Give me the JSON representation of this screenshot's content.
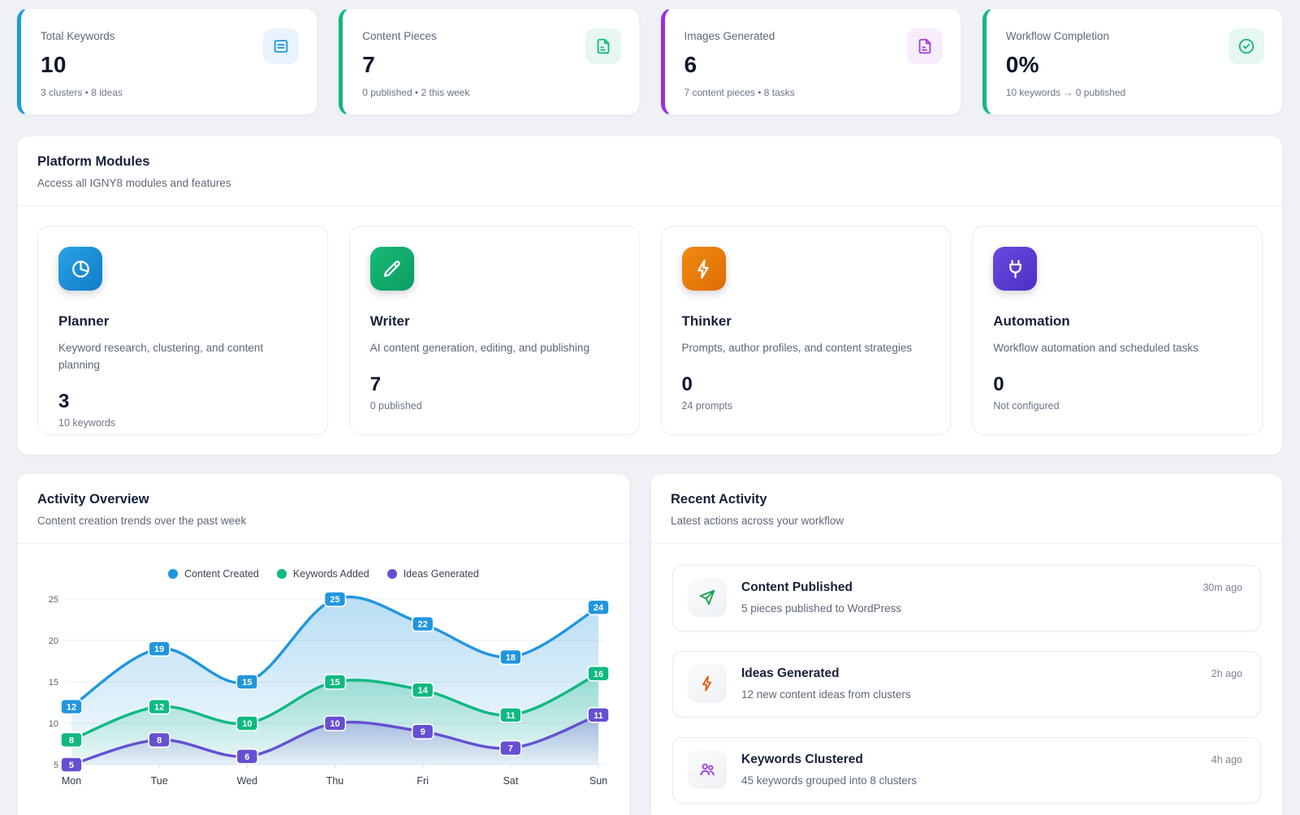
{
  "stats": [
    {
      "label": "Total Keywords",
      "value": "10",
      "sub": "3 clusters • 8 ideas",
      "accent_color": "#1e9be0",
      "icon": "article-icon"
    },
    {
      "label": "Content Pieces",
      "value": "7",
      "sub": "0 published • 2 this week",
      "accent_color": "#10b981",
      "icon": "file-text-icon"
    },
    {
      "label": "Images Generated",
      "value": "6",
      "sub": "7 content pieces • 8 tasks",
      "accent_color": "#9b2fe0",
      "icon": "file-text-icon"
    },
    {
      "label": "Workflow Completion",
      "value": "0%",
      "sub": "10 keywords → 0 published",
      "accent_color": "#10b981",
      "icon": "check-circle-icon"
    }
  ],
  "modules_section": {
    "title": "Platform Modules",
    "subtitle": "Access all IGNY8 modules and features",
    "modules": [
      {
        "name": "Planner",
        "description": "Keyword research, clustering, and content planning",
        "value": "3",
        "sub": "10 keywords",
        "color": "#1793dd",
        "icon": "pie-chart-icon"
      },
      {
        "name": "Writer",
        "description": "AI content generation, editing, and publishing",
        "value": "7",
        "sub": "0 published",
        "color": "#10b981",
        "icon": "pencil-icon"
      },
      {
        "name": "Thinker",
        "description": "Prompts, author profiles, and content strategies",
        "value": "0",
        "sub": "24 prompts",
        "color": "#ea7a0a",
        "icon": "lightning-icon"
      },
      {
        "name": "Automation",
        "description": "Workflow automation and scheduled tasks",
        "value": "0",
        "sub": "Not configured",
        "color": "#5b3fd6",
        "icon": "plug-icon"
      }
    ]
  },
  "activity_overview": {
    "title": "Activity Overview",
    "subtitle": "Content creation trends over the past week"
  },
  "chart_data": {
    "type": "line",
    "categories": [
      "Mon",
      "Tue",
      "Wed",
      "Thu",
      "Fri",
      "Sat",
      "Sun"
    ],
    "series": [
      {
        "name": "Content Created",
        "color": "#2196dd",
        "values": [
          12,
          19,
          15,
          25,
          22,
          18,
          24
        ]
      },
      {
        "name": "Keywords Added",
        "color": "#10b981",
        "values": [
          8,
          12,
          10,
          15,
          14,
          11,
          16
        ]
      },
      {
        "name": "Ideas Generated",
        "color": "#6650d2",
        "values": [
          5,
          8,
          6,
          10,
          9,
          7,
          11
        ]
      }
    ],
    "ylim": [
      5,
      25
    ],
    "yticks": [
      5,
      10,
      15,
      20,
      25
    ],
    "grid": true,
    "legend_position": "top",
    "point_labels": true,
    "area_fill": true
  },
  "recent_activity": {
    "title": "Recent Activity",
    "subtitle": "Latest actions across your workflow",
    "items": [
      {
        "title": "Content Published",
        "description": "5 pieces published to WordPress",
        "time": "30m ago",
        "icon": "send-icon",
        "icon_color": "#16a34a"
      },
      {
        "title": "Ideas Generated",
        "description": "12 new content ideas from clusters",
        "time": "2h ago",
        "icon": "lightning-icon",
        "icon_color": "#ea580c"
      },
      {
        "title": "Keywords Clustered",
        "description": "45 keywords grouped into 8 clusters",
        "time": "4h ago",
        "icon": "users-icon",
        "icon_color": "#a23ae6"
      }
    ]
  }
}
